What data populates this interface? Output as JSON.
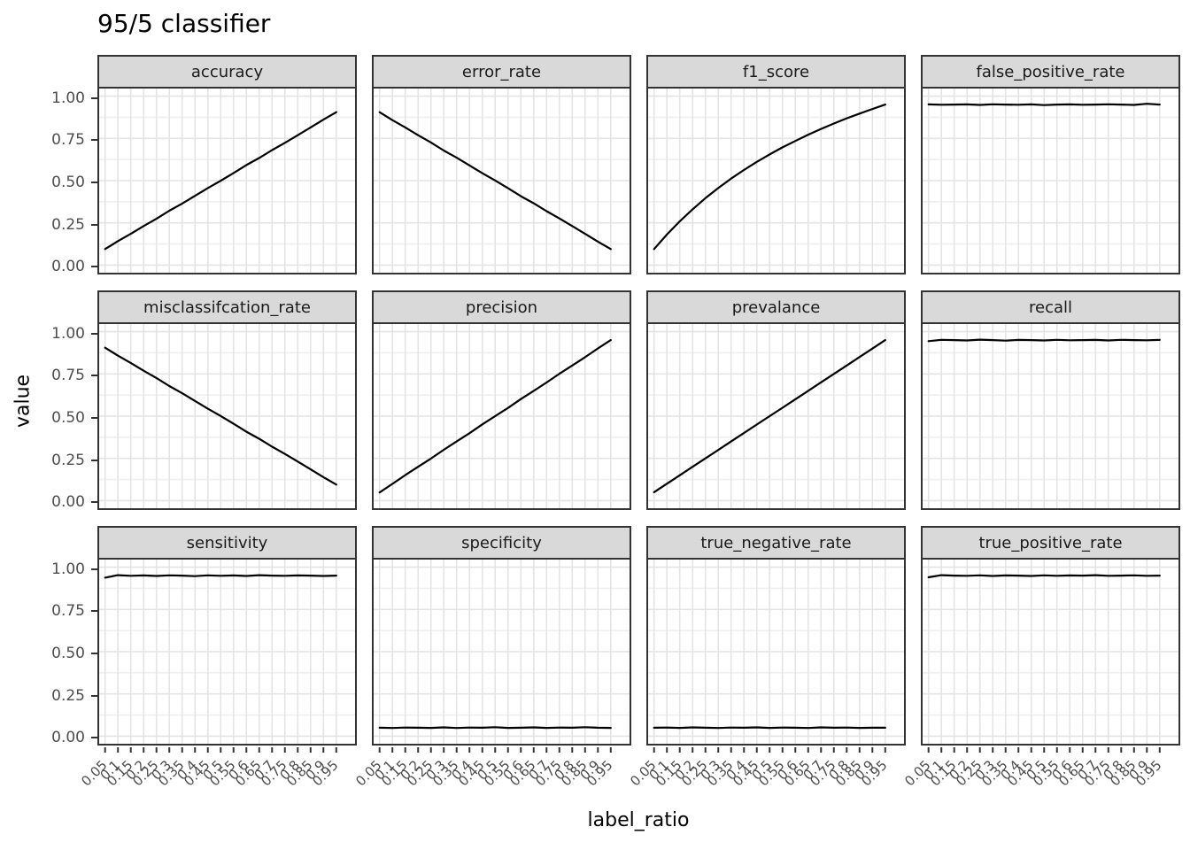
{
  "title": "95/5 classifier",
  "axes": {
    "x_title": "label_ratio",
    "y_title": "value"
  },
  "chart_data": {
    "type": "line",
    "title": "95/5 classifier",
    "xlabel": "label_ratio",
    "ylabel": "value",
    "ylim": [
      0,
      1
    ],
    "x_scale": "discrete",
    "grid": "vertical line per x tick; horizontal major every 0.25 with minor every 0.125",
    "legend": "none",
    "layout": {
      "columns": 4,
      "rows": 3,
      "strip_position": "top"
    },
    "x": [
      0.05,
      0.1,
      0.15,
      0.2,
      0.25,
      0.3,
      0.35,
      0.4,
      0.45,
      0.5,
      0.55,
      0.6,
      0.65,
      0.7,
      0.75,
      0.8,
      0.85,
      0.9,
      0.95
    ],
    "x_tick_labels": [
      "0.05",
      "0.1",
      "0.15",
      "0.2",
      "0.25",
      "0.3",
      "0.35",
      "0.4",
      "0.45",
      "0.5",
      "0.55",
      "0.6",
      "0.65",
      "0.7",
      "0.75",
      "0.8",
      "0.85",
      "0.9",
      "0.95"
    ],
    "y_ticks": [
      1.0,
      0.75,
      0.5,
      0.25,
      0.0
    ],
    "y_tick_labels": [
      "1.00",
      "0.75",
      "0.50",
      "0.25",
      "0.00"
    ],
    "facets": [
      {
        "label": "accuracy",
        "values": [
          0.095,
          0.142,
          0.185,
          0.231,
          0.274,
          0.322,
          0.364,
          0.41,
          0.456,
          0.499,
          0.545,
          0.592,
          0.634,
          0.681,
          0.724,
          0.769,
          0.815,
          0.861,
          0.905
        ]
      },
      {
        "label": "error_rate",
        "values": [
          0.905,
          0.858,
          0.815,
          0.769,
          0.726,
          0.678,
          0.636,
          0.59,
          0.544,
          0.501,
          0.455,
          0.408,
          0.366,
          0.319,
          0.276,
          0.231,
          0.185,
          0.139,
          0.095
        ]
      },
      {
        "label": "f1_score",
        "values": [
          0.095,
          0.181,
          0.259,
          0.33,
          0.396,
          0.456,
          0.512,
          0.563,
          0.611,
          0.655,
          0.697,
          0.735,
          0.772,
          0.806,
          0.838,
          0.869,
          0.897,
          0.924,
          0.95
        ]
      },
      {
        "label": "false_positive_rate",
        "values": [
          0.951,
          0.949,
          0.95,
          0.951,
          0.948,
          0.952,
          0.95,
          0.949,
          0.951,
          0.947,
          0.95,
          0.951,
          0.949,
          0.95,
          0.952,
          0.95,
          0.948,
          0.955,
          0.95
        ]
      },
      {
        "label": "misclassifcation_rate",
        "values": [
          0.905,
          0.858,
          0.815,
          0.769,
          0.726,
          0.678,
          0.636,
          0.59,
          0.544,
          0.501,
          0.455,
          0.408,
          0.366,
          0.319,
          0.276,
          0.231,
          0.185,
          0.139,
          0.095
        ]
      },
      {
        "label": "precision",
        "values": [
          0.048,
          0.099,
          0.151,
          0.2,
          0.249,
          0.301,
          0.35,
          0.399,
          0.451,
          0.5,
          0.549,
          0.601,
          0.65,
          0.699,
          0.751,
          0.8,
          0.849,
          0.901,
          0.95
        ]
      },
      {
        "label": "prevalance",
        "values": [
          0.05,
          0.1,
          0.15,
          0.2,
          0.25,
          0.3,
          0.35,
          0.4,
          0.45,
          0.5,
          0.55,
          0.6,
          0.65,
          0.7,
          0.75,
          0.8,
          0.85,
          0.9,
          0.95
        ]
      },
      {
        "label": "recall",
        "values": [
          0.944,
          0.952,
          0.95,
          0.948,
          0.953,
          0.95,
          0.947,
          0.951,
          0.95,
          0.948,
          0.952,
          0.949,
          0.95,
          0.951,
          0.948,
          0.952,
          0.95,
          0.949,
          0.951
        ]
      },
      {
        "label": "sensitivity",
        "values": [
          0.938,
          0.953,
          0.949,
          0.951,
          0.948,
          0.952,
          0.95,
          0.947,
          0.952,
          0.949,
          0.951,
          0.948,
          0.953,
          0.95,
          0.949,
          0.951,
          0.95,
          0.948,
          0.95
        ]
      },
      {
        "label": "specificity",
        "values": [
          0.05,
          0.048,
          0.051,
          0.05,
          0.049,
          0.052,
          0.048,
          0.051,
          0.05,
          0.053,
          0.049,
          0.05,
          0.052,
          0.049,
          0.051,
          0.05,
          0.053,
          0.05,
          0.049
        ]
      },
      {
        "label": "true_negative_rate",
        "values": [
          0.05,
          0.051,
          0.049,
          0.052,
          0.05,
          0.048,
          0.051,
          0.05,
          0.052,
          0.049,
          0.051,
          0.05,
          0.048,
          0.052,
          0.05,
          0.051,
          0.049,
          0.05,
          0.05
        ]
      },
      {
        "label": "true_positive_rate",
        "values": [
          0.94,
          0.953,
          0.95,
          0.949,
          0.952,
          0.948,
          0.951,
          0.95,
          0.948,
          0.952,
          0.949,
          0.951,
          0.95,
          0.953,
          0.949,
          0.95,
          0.952,
          0.949,
          0.95
        ]
      }
    ],
    "colors": {
      "line": "#000000",
      "strip_bg": "#d9d9d9",
      "border": "#333333",
      "grid_major": "#e4e4e4",
      "grid_minor": "#efefef",
      "axis_text": "#4d4d4d",
      "tick_mark": "#333333",
      "text": "#1a1a1a"
    }
  }
}
